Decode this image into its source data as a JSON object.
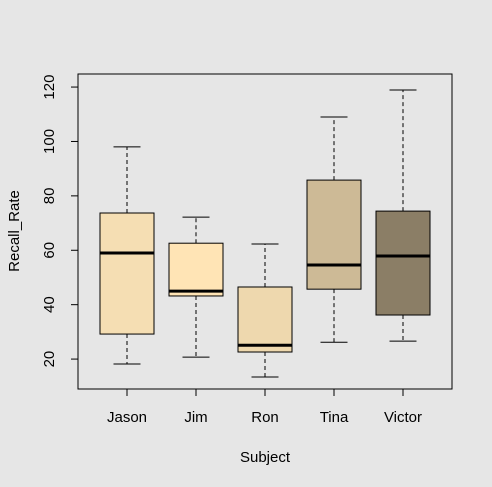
{
  "chart_data": {
    "type": "box",
    "x_label": "Subject",
    "y_label": "Recall_Rate",
    "categories": [
      "Jason",
      "Jim",
      "Ron",
      "Tina",
      "Victor"
    ],
    "boxes": [
      {
        "whisker_low": 18.2,
        "q1": 29.2,
        "median": 59,
        "q3": 73.7,
        "whisker_high": 98
      },
      {
        "whisker_low": 20.7,
        "q1": 43.2,
        "median": 45,
        "q3": 62.6,
        "whisker_high": 72.2
      },
      {
        "whisker_low": 13.4,
        "q1": 22.6,
        "median": 25.1,
        "q3": 46.5,
        "whisker_high": 62.3
      },
      {
        "whisker_low": 26.2,
        "q1": 45.7,
        "median": 54.6,
        "q3": 85.8,
        "whisker_high": 109
      },
      {
        "whisker_low": 26.6,
        "q1": 36.2,
        "median": 57.9,
        "q3": 74.4,
        "whisker_high": 118.9
      }
    ],
    "colors": [
      "#f5deb3",
      "#ffe4b5",
      "#eed8ae",
      "#cdba96",
      "#8b7e66"
    ],
    "ylim": [
      9,
      124.8
    ],
    "yticks": [
      20,
      40,
      60,
      80,
      100,
      120
    ]
  }
}
